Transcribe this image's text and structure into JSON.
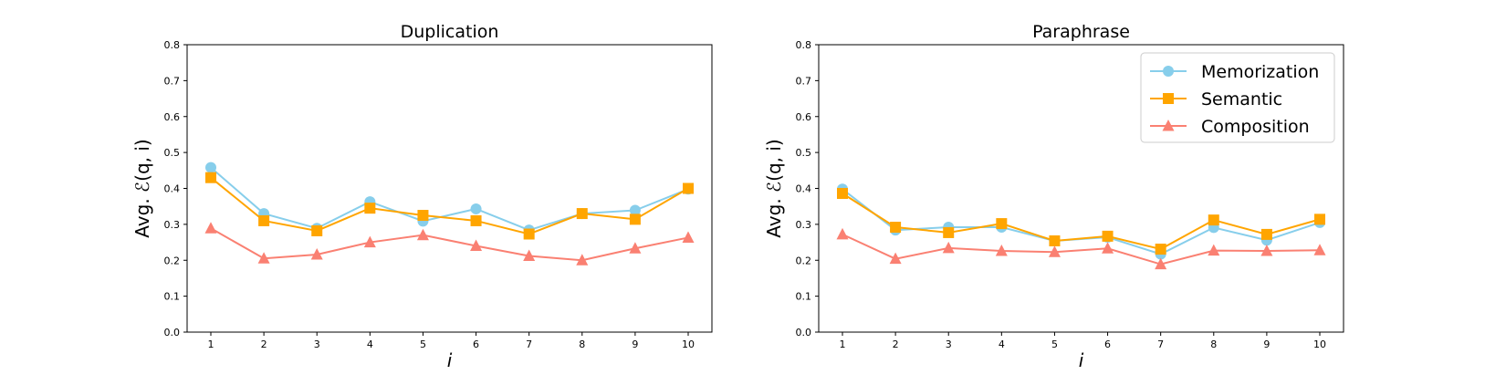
{
  "chart_data": [
    {
      "type": "line",
      "title": "Duplication",
      "xlabel": "i",
      "ylabel": "Avg. ℰ(q, i)",
      "x": [
        1,
        2,
        3,
        4,
        5,
        6,
        7,
        8,
        9,
        10
      ],
      "xticks": [
        "1",
        "2",
        "3",
        "4",
        "5",
        "6",
        "7",
        "8",
        "9",
        "10"
      ],
      "ylim": [
        0,
        0.8
      ],
      "yticks": [
        "0.0",
        "0.1",
        "0.2",
        "0.3",
        "0.4",
        "0.5",
        "0.6",
        "0.7",
        "0.8"
      ],
      "grid": false,
      "series": [
        {
          "name": "Memorization",
          "color": "#87ceeb",
          "marker": "circle",
          "values": [
            0.458,
            0.33,
            0.289,
            0.363,
            0.309,
            0.343,
            0.284,
            0.33,
            0.339,
            0.398
          ]
        },
        {
          "name": "Semantic",
          "color": "#ffa500",
          "marker": "square",
          "values": [
            0.43,
            0.31,
            0.282,
            0.345,
            0.325,
            0.31,
            0.273,
            0.33,
            0.314,
            0.4
          ]
        },
        {
          "name": "Composition",
          "color": "#fa8072",
          "marker": "triangle",
          "values": [
            0.289,
            0.205,
            0.216,
            0.25,
            0.27,
            0.24,
            0.212,
            0.2,
            0.233,
            0.263
          ]
        }
      ]
    },
    {
      "type": "line",
      "title": "Paraphrase",
      "xlabel": "i",
      "ylabel": "Avg. ℰ(q, i)",
      "x": [
        1,
        2,
        3,
        4,
        5,
        6,
        7,
        8,
        9,
        10
      ],
      "xticks": [
        "1",
        "2",
        "3",
        "4",
        "5",
        "6",
        "7",
        "8",
        "9",
        "10"
      ],
      "ylim": [
        0,
        0.8
      ],
      "yticks": [
        "0.0",
        "0.1",
        "0.2",
        "0.3",
        "0.4",
        "0.5",
        "0.6",
        "0.7",
        "0.8"
      ],
      "grid": false,
      "legend": "top-right",
      "series": [
        {
          "name": "Memorization",
          "color": "#87ceeb",
          "marker": "circle",
          "values": [
            0.398,
            0.284,
            0.292,
            0.292,
            0.254,
            0.264,
            0.217,
            0.291,
            0.256,
            0.305
          ]
        },
        {
          "name": "Semantic",
          "color": "#ffa500",
          "marker": "square",
          "values": [
            0.386,
            0.292,
            0.277,
            0.302,
            0.254,
            0.267,
            0.231,
            0.312,
            0.272,
            0.314
          ]
        },
        {
          "name": "Composition",
          "color": "#fa8072",
          "marker": "triangle",
          "values": [
            0.272,
            0.204,
            0.234,
            0.226,
            0.223,
            0.233,
            0.189,
            0.227,
            0.226,
            0.228
          ]
        }
      ]
    }
  ]
}
